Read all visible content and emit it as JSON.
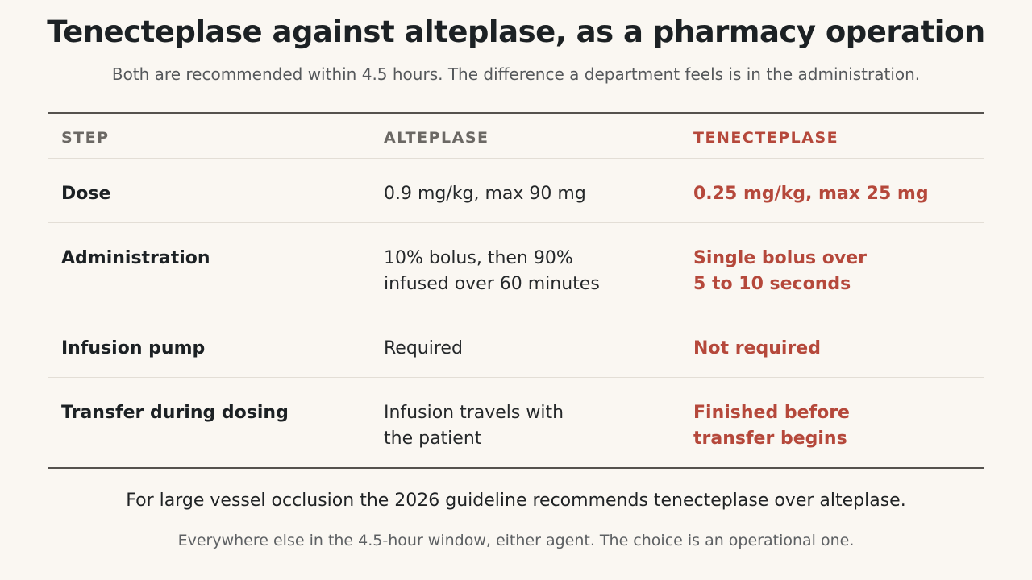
{
  "title": "Tenecteplase against alteplase, as a pharmacy operation",
  "subtitle": "Both are recommended within 4.5 hours. The difference a department feels is in the administration.",
  "table": {
    "headers": [
      "STEP",
      "ALTEPLASE",
      "TENECTEPLASE"
    ],
    "rows": [
      {
        "step": "Dose",
        "alteplase": [
          "0.9 mg/kg, max 90 mg"
        ],
        "tenecteplase": [
          "0.25 mg/kg, max 25 mg"
        ]
      },
      {
        "step": "Administration",
        "alteplase": [
          "10% bolus, then 90%",
          "infused over 60 minutes"
        ],
        "tenecteplase": [
          "Single bolus over",
          "5 to 10 seconds"
        ]
      },
      {
        "step": "Infusion pump",
        "alteplase": [
          "Required"
        ],
        "tenecteplase": [
          "Not required"
        ]
      },
      {
        "step": "Transfer during dosing",
        "alteplase": [
          "Infusion travels with",
          "the patient"
        ],
        "tenecteplase": [
          "Finished before",
          "transfer begins"
        ]
      }
    ]
  },
  "footer": {
    "conclusion": "For large vessel occlusion the 2026 guideline recommends tenecteplase over alteplase.",
    "note": "Everywhere else in the 4.5-hour window, either agent. The choice is an operational one."
  },
  "colors": {
    "background": "#faf7f2",
    "accent": "#b5483b",
    "rule": "#55524e"
  }
}
